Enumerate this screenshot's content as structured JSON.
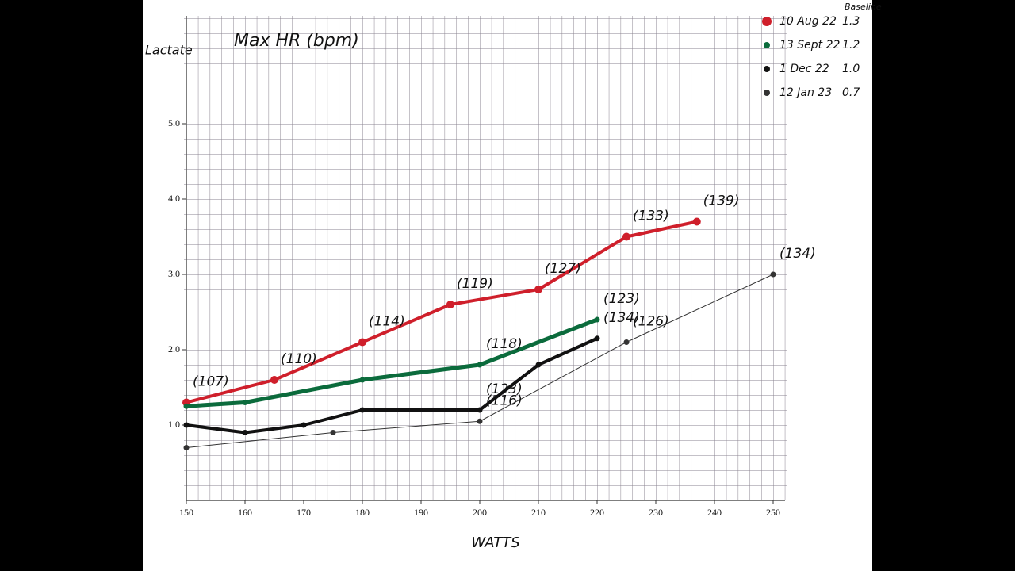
{
  "chart_data": {
    "type": "line",
    "title": "Max HR (bpm)",
    "y_label": "Lactate",
    "x_label": "WATTS",
    "legend_header": "Baseline",
    "xlim": [
      150,
      250
    ],
    "ylim": [
      0,
      6.4
    ],
    "xticks": [
      150,
      160,
      170,
      180,
      190,
      200,
      210,
      220,
      230,
      240,
      250
    ],
    "yticks": [
      {
        "value": 1,
        "label": "1.0"
      },
      {
        "value": 2,
        "label": "2.0"
      },
      {
        "value": 3,
        "label": "3.0"
      },
      {
        "value": 4,
        "label": "4.0"
      },
      {
        "value": 5,
        "label": "5.0"
      }
    ],
    "grid": true,
    "series": [
      {
        "name": "10 Aug 22",
        "color": "#cf1f2b",
        "width": 4,
        "baseline": {
          "value": 1.3,
          "label": "1.3"
        },
        "x": [
          150,
          165,
          180,
          195,
          210,
          225,
          237
        ],
        "values": [
          1.3,
          1.6,
          2.1,
          2.6,
          2.8,
          3.5,
          3.7
        ],
        "annotations": [
          "(107)",
          "(110)",
          "(114)",
          "(119)",
          "(127)",
          "(133)",
          "(139)"
        ]
      },
      {
        "name": "13 Sept 22",
        "color": "#0b6b3c",
        "width": 5,
        "baseline": {
          "value": 1.2,
          "label": "1.2"
        },
        "x": [
          150,
          160,
          180,
          200,
          220
        ],
        "values": [
          1.25,
          1.3,
          1.6,
          1.8,
          2.4
        ],
        "annotations": [
          null,
          null,
          null,
          "(118)",
          "(123)"
        ]
      },
      {
        "name": "1 Dec 22",
        "color": "#111111",
        "width": 4,
        "baseline": {
          "value": 1.0,
          "label": "1.0"
        },
        "x": [
          150,
          160,
          170,
          180,
          200,
          210,
          220
        ],
        "values": [
          1.0,
          0.9,
          1.0,
          1.2,
          1.2,
          1.8,
          2.15
        ],
        "annotations": [
          null,
          null,
          null,
          null,
          "(123)",
          null,
          "(134)"
        ]
      },
      {
        "name": "12 Jan 23",
        "color": "#333333",
        "width": 1,
        "baseline": {
          "value": 0.7,
          "label": "0.7"
        },
        "x": [
          150,
          175,
          200,
          225,
          250
        ],
        "values": [
          0.7,
          0.9,
          1.05,
          2.1,
          3.0
        ],
        "annotations": [
          null,
          null,
          "(116)",
          "(126)",
          "(134)"
        ]
      }
    ]
  }
}
